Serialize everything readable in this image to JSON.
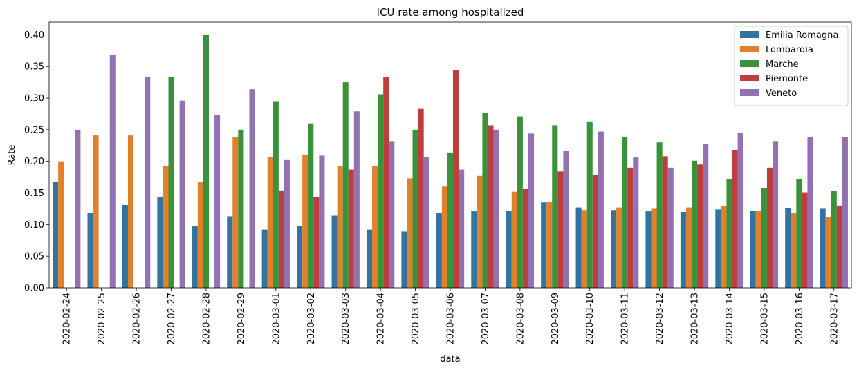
{
  "chart_data": {
    "type": "bar",
    "title": "ICU rate among hospitalized",
    "xlabel": "data",
    "ylabel": "Rate",
    "ylim": [
      0,
      0.42
    ],
    "yticks": [
      "0.00",
      "0.05",
      "0.10",
      "0.15",
      "0.20",
      "0.25",
      "0.30",
      "0.35",
      "0.40"
    ],
    "grid": false,
    "legend_position": "top-right",
    "categories": [
      "2020-02-24",
      "2020-02-25",
      "2020-02-26",
      "2020-02-27",
      "2020-02-28",
      "2020-02-29",
      "2020-03-01",
      "2020-03-02",
      "2020-03-03",
      "2020-03-04",
      "2020-03-05",
      "2020-03-06",
      "2020-03-07",
      "2020-03-08",
      "2020-03-09",
      "2020-03-10",
      "2020-03-11",
      "2020-03-12",
      "2020-03-13",
      "2020-03-14",
      "2020-03-15",
      "2020-03-16",
      "2020-03-17"
    ],
    "series": [
      {
        "name": "Emilia Romagna",
        "color": "#3274a1",
        "values": [
          0.167,
          0.118,
          0.131,
          0.143,
          0.097,
          0.113,
          0.092,
          0.098,
          0.114,
          0.092,
          0.089,
          0.118,
          0.121,
          0.122,
          0.135,
          0.127,
          0.123,
          0.121,
          0.12,
          0.124,
          0.122,
          0.126,
          0.125
        ]
      },
      {
        "name": "Lombardia",
        "color": "#e1812c",
        "values": [
          0.2,
          0.241,
          0.241,
          0.193,
          0.167,
          0.239,
          0.207,
          0.21,
          0.193,
          0.193,
          0.173,
          0.16,
          0.177,
          0.152,
          0.136,
          0.123,
          0.127,
          0.125,
          0.127,
          0.129,
          0.122,
          0.118,
          0.112
        ]
      },
      {
        "name": "Marche",
        "color": "#3a923a",
        "values": [
          null,
          null,
          null,
          0.333,
          0.4,
          0.25,
          0.294,
          0.26,
          0.325,
          0.306,
          0.25,
          0.214,
          0.277,
          0.271,
          0.257,
          0.262,
          0.238,
          0.23,
          0.201,
          0.172,
          0.158,
          0.172,
          0.153
        ]
      },
      {
        "name": "Piemonte",
        "color": "#c03d3e",
        "values": [
          null,
          null,
          null,
          null,
          null,
          null,
          0.154,
          0.143,
          0.187,
          0.333,
          0.283,
          0.344,
          0.257,
          0.156,
          0.184,
          0.178,
          0.19,
          0.208,
          0.195,
          0.218,
          0.19,
          0.151,
          0.13
        ]
      },
      {
        "name": "Veneto",
        "color": "#9372b2",
        "values": [
          0.25,
          0.368,
          0.333,
          0.296,
          0.273,
          0.314,
          0.202,
          0.209,
          0.279,
          0.232,
          0.207,
          0.187,
          0.25,
          0.244,
          0.216,
          0.247,
          0.206,
          0.19,
          0.227,
          0.245,
          0.232,
          0.239,
          0.238
        ]
      }
    ]
  }
}
